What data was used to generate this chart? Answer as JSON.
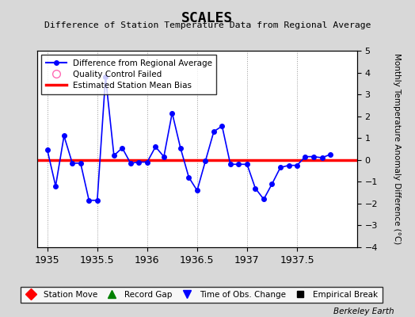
{
  "title": "SCALES",
  "subtitle": "Difference of Station Temperature Data from Regional Average",
  "ylabel": "Monthly Temperature Anomaly Difference (°C)",
  "watermark": "Berkeley Earth",
  "xlim": [
    1934.9,
    1938.1
  ],
  "ylim": [
    -4,
    5
  ],
  "yticks": [
    -4,
    -3,
    -2,
    -1,
    0,
    1,
    2,
    3,
    4,
    5
  ],
  "xticks": [
    1935,
    1935.5,
    1936,
    1936.5,
    1937,
    1937.5
  ],
  "xtick_labels": [
    "1935",
    "1935.5",
    "1936",
    "1936.5",
    "1937",
    "1937.5"
  ],
  "bias_value": 0.0,
  "line_color": "#0000FF",
  "bias_color": "#FF0000",
  "background_color": "#D8D8D8",
  "plot_bg_color": "#FFFFFF",
  "data_x": [
    1935.0,
    1935.083,
    1935.167,
    1935.25,
    1935.333,
    1935.417,
    1935.5,
    1935.583,
    1935.667,
    1935.75,
    1935.833,
    1935.917,
    1936.0,
    1936.083,
    1936.167,
    1936.25,
    1936.333,
    1936.417,
    1936.5,
    1936.583,
    1936.667,
    1936.75,
    1936.833,
    1936.917,
    1937.0,
    1937.083,
    1937.167,
    1937.25,
    1937.333,
    1937.417,
    1937.5,
    1937.583,
    1937.667,
    1937.75,
    1937.833
  ],
  "data_y": [
    0.45,
    -1.2,
    1.1,
    -0.15,
    -0.15,
    -1.85,
    -1.85,
    3.8,
    0.2,
    0.55,
    -0.15,
    -0.1,
    -0.1,
    0.6,
    0.15,
    2.15,
    0.55,
    -0.8,
    -1.4,
    -0.05,
    1.3,
    1.55,
    -0.2,
    -0.2,
    -0.2,
    -1.3,
    -1.8,
    -1.1,
    -0.35,
    -0.25,
    -0.25,
    0.15,
    0.15,
    0.1,
    0.25
  ]
}
